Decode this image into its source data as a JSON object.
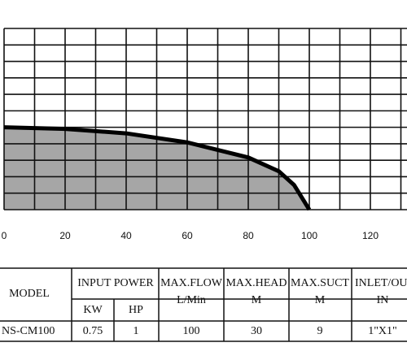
{
  "chart_data": {
    "type": "area",
    "series": [
      {
        "color": "#a6a6a6",
        "x": [
          0,
          20,
          40,
          60,
          80,
          90,
          95,
          100
        ],
        "values": [
          30,
          29.4,
          27.8,
          24.5,
          19,
          14,
          9,
          0
        ]
      }
    ],
    "xlim": [
      0,
      132
    ],
    "ylim": [
      0,
      66
    ],
    "xticks": [
      0,
      20,
      40,
      60,
      80,
      100,
      120
    ],
    "xminorticks": [
      10,
      30,
      50,
      70,
      90,
      110,
      130
    ],
    "yticks": [
      0,
      6,
      12,
      18,
      24,
      30,
      36,
      42,
      48,
      54,
      60,
      66
    ],
    "grid": true
  },
  "table": {
    "header": [
      "MODEL",
      "INPUT POWER",
      "MAX.FLOW",
      "MAX.HEAD",
      "MAX.SUCT",
      "INLET/OUT"
    ],
    "subheader": [
      "KW",
      "HP",
      "L/Min",
      "M",
      "M",
      "IN"
    ],
    "row": [
      "NS-CM100",
      "0.75",
      "1",
      "100",
      "30",
      "9",
      "1\"X1\""
    ]
  }
}
